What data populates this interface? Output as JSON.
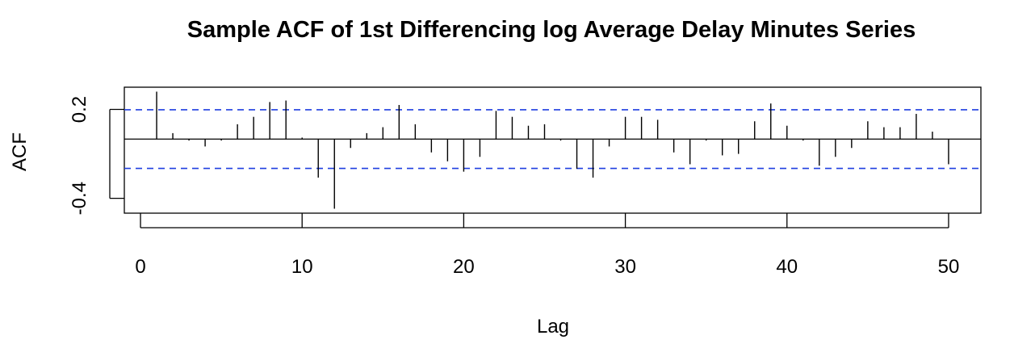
{
  "chart_data": {
    "type": "bar",
    "title": "Sample ACF of 1st Differencing log Average Delay Minutes Series",
    "xlabel": "Lag",
    "ylabel": "ACF",
    "xlim": [
      -1,
      52
    ],
    "ylim": [
      -0.5,
      0.35
    ],
    "x_ticks": [
      0,
      10,
      20,
      30,
      40,
      50
    ],
    "x_tick_labels": [
      "0",
      "10",
      "20",
      "30",
      "40",
      "50"
    ],
    "y_ticks": [
      -0.4,
      0.2
    ],
    "y_tick_labels": [
      "-0.4",
      "0.2"
    ],
    "confidence_bound": 0.198,
    "grid": false,
    "lags": [
      1,
      2,
      3,
      4,
      5,
      6,
      7,
      8,
      9,
      10,
      11,
      12,
      13,
      14,
      15,
      16,
      17,
      18,
      19,
      20,
      21,
      22,
      23,
      24,
      25,
      26,
      27,
      28,
      29,
      30,
      31,
      32,
      33,
      34,
      35,
      36,
      37,
      38,
      39,
      40,
      41,
      42,
      43,
      44,
      45,
      46,
      47,
      48,
      49,
      50
    ],
    "values": [
      0.32,
      0.04,
      -0.01,
      -0.05,
      -0.01,
      0.1,
      0.15,
      0.25,
      0.26,
      0.01,
      -0.26,
      -0.47,
      -0.06,
      0.04,
      0.08,
      0.23,
      0.1,
      -0.09,
      -0.15,
      -0.22,
      -0.12,
      0.19,
      0.15,
      0.09,
      0.1,
      -0.01,
      -0.2,
      -0.26,
      -0.05,
      0.15,
      0.15,
      0.13,
      -0.09,
      -0.17,
      -0.01,
      -0.11,
      -0.1,
      0.12,
      0.24,
      0.09,
      -0.01,
      -0.18,
      -0.12,
      -0.06,
      0.12,
      0.08,
      0.08,
      0.17,
      0.05,
      -0.17
    ]
  }
}
